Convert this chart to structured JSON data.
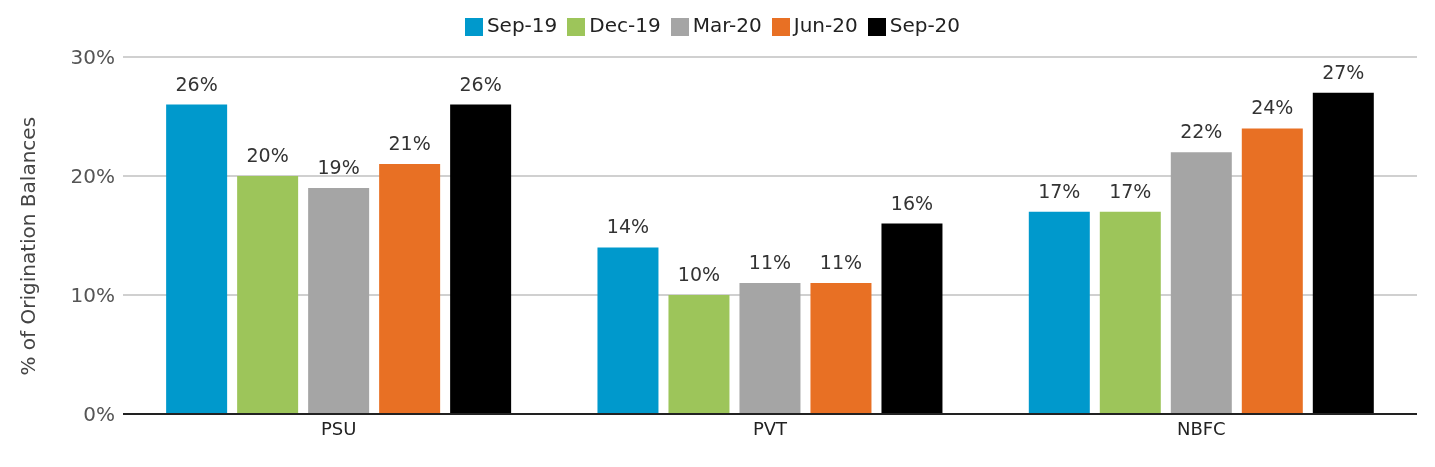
{
  "chart_data": {
    "type": "bar",
    "ylabel": "% of Origination Balances",
    "categories": [
      "PSU",
      "PVT",
      "NBFC"
    ],
    "series": [
      {
        "name": "Sep-19",
        "color": "#0099cc",
        "values": [
          26,
          14,
          17
        ],
        "value_labels": [
          "26%",
          "14%",
          "17%"
        ]
      },
      {
        "name": "Dec-19",
        "color": "#9dc55a",
        "values": [
          20,
          10,
          17
        ],
        "value_labels": [
          "20%",
          "10%",
          "17%"
        ]
      },
      {
        "name": "Mar-20",
        "color": "#a5a5a5",
        "values": [
          19,
          11,
          22
        ],
        "value_labels": [
          "19%",
          "11%",
          "22%"
        ]
      },
      {
        "name": "Jun-20",
        "color": "#e87024",
        "values": [
          21,
          11,
          24
        ],
        "value_labels": [
          "21%",
          "11%",
          "24%"
        ]
      },
      {
        "name": "Sep-20",
        "color": "#000000",
        "values": [
          26,
          16,
          27
        ],
        "value_labels": [
          "26%",
          "16%",
          "27%"
        ]
      }
    ],
    "ylim": [
      0,
      30
    ],
    "yticks": [
      {
        "value": 0,
        "label": "0%"
      },
      {
        "value": 10,
        "label": "10%"
      },
      {
        "value": 20,
        "label": "20%"
      },
      {
        "value": 30,
        "label": "30%"
      }
    ],
    "grid": "y",
    "legend": "top"
  }
}
